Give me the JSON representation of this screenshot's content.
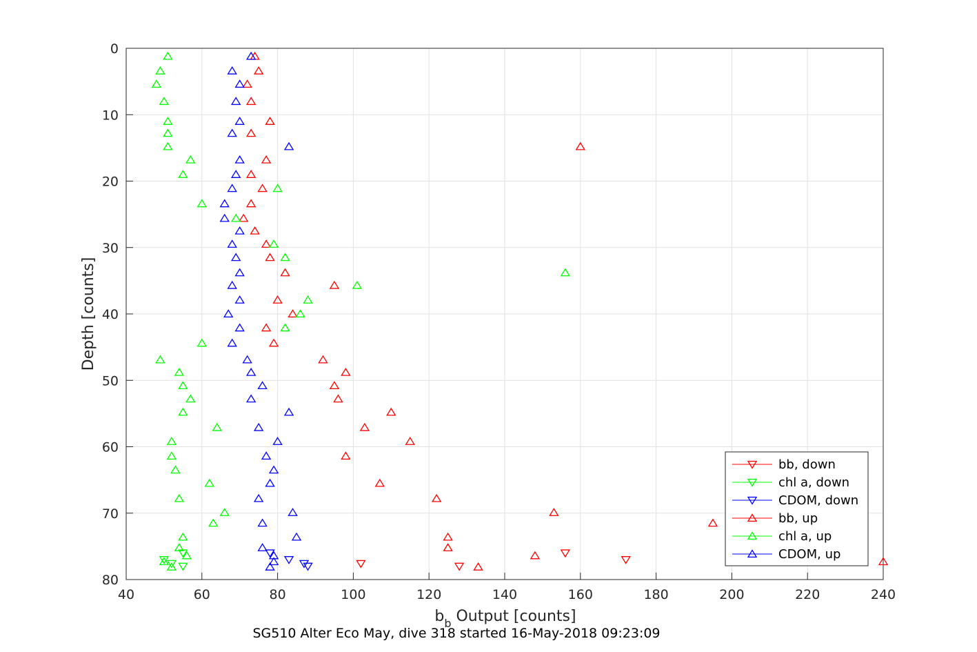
{
  "chart_data": {
    "type": "scatter",
    "title": "",
    "caption": "SG510 Alter Eco May, dive 318 started 16-May-2018 09:23:09",
    "xlabel_main": "b",
    "xlabel_sub": "b",
    "xlabel_rest": " Output [counts]",
    "ylabel": "Depth [counts]",
    "xlim": [
      40,
      240
    ],
    "ylim": [
      0,
      80
    ],
    "y_reversed": true,
    "grid": true,
    "legend_position": "bottom-right",
    "xticks": [
      "40",
      "60",
      "80",
      "100",
      "120",
      "140",
      "160",
      "180",
      "200",
      "220",
      "240"
    ],
    "yticks": [
      "0",
      "10",
      "20",
      "30",
      "40",
      "50",
      "60",
      "70",
      "80"
    ],
    "series": [
      {
        "name": "bb, down",
        "color": "#ff0000",
        "marker": "triangle-down",
        "points": [
          [
            156,
            76
          ],
          [
            172,
            77
          ],
          [
            128,
            78
          ],
          [
            102,
            77.6
          ]
        ]
      },
      {
        "name": "chl a, down",
        "color": "#00ff00",
        "marker": "triangle-down",
        "points": [
          [
            55,
            76
          ],
          [
            50,
            77
          ],
          [
            52,
            77.6
          ],
          [
            55,
            78
          ]
        ]
      },
      {
        "name": "CDOM, down",
        "color": "#0000ff",
        "marker": "triangle-down",
        "points": [
          [
            78,
            76
          ],
          [
            83,
            77
          ],
          [
            87,
            77.6
          ],
          [
            88,
            78
          ]
        ]
      },
      {
        "name": "bb, up",
        "color": "#ff0000",
        "marker": "triangle-up",
        "points": [
          [
            74,
            1.2
          ],
          [
            75,
            3.4
          ],
          [
            72,
            5.4
          ],
          [
            73,
            8
          ],
          [
            78,
            11
          ],
          [
            73,
            12.8
          ],
          [
            160,
            14.8
          ],
          [
            77,
            16.8
          ],
          [
            73,
            19
          ],
          [
            76,
            21.1
          ],
          [
            73,
            23.4
          ],
          [
            71,
            25.6
          ],
          [
            74,
            27.5
          ],
          [
            77,
            29.5
          ],
          [
            78,
            31.5
          ],
          [
            82,
            33.8
          ],
          [
            95,
            35.7
          ],
          [
            80,
            37.9
          ],
          [
            84,
            40
          ],
          [
            77,
            42.1
          ],
          [
            79,
            44.4
          ],
          [
            92,
            46.9
          ],
          [
            98,
            48.8
          ],
          [
            95,
            50.8
          ],
          [
            96,
            52.8
          ],
          [
            110,
            54.8
          ],
          [
            103,
            57.1
          ],
          [
            115,
            59.2
          ],
          [
            98,
            61.4
          ],
          [
            107,
            65.5
          ],
          [
            122,
            67.8
          ],
          [
            153,
            69.9
          ],
          [
            195,
            71.5
          ],
          [
            125,
            73.6
          ],
          [
            125,
            75.2
          ],
          [
            148,
            76.4
          ],
          [
            133,
            78.1
          ],
          [
            240,
            77.3
          ]
        ]
      },
      {
        "name": "chl a, up",
        "color": "#00ff00",
        "marker": "triangle-up",
        "points": [
          [
            51,
            1.2
          ],
          [
            49,
            3.4
          ],
          [
            48,
            5.4
          ],
          [
            50,
            8
          ],
          [
            51,
            11
          ],
          [
            51,
            12.8
          ],
          [
            51,
            14.8
          ],
          [
            57,
            16.8
          ],
          [
            55,
            19
          ],
          [
            80,
            21.1
          ],
          [
            60,
            23.4
          ],
          [
            69,
            25.6
          ],
          [
            79,
            29.5
          ],
          [
            82,
            31.5
          ],
          [
            156,
            33.8
          ],
          [
            101,
            35.7
          ],
          [
            88,
            37.9
          ],
          [
            86,
            40
          ],
          [
            82,
            42.1
          ],
          [
            60,
            44.4
          ],
          [
            49,
            46.9
          ],
          [
            54,
            48.8
          ],
          [
            55,
            50.8
          ],
          [
            57,
            52.8
          ],
          [
            55,
            54.8
          ],
          [
            64,
            57.1
          ],
          [
            52,
            59.2
          ],
          [
            52,
            61.4
          ],
          [
            53,
            63.5
          ],
          [
            62,
            65.5
          ],
          [
            54,
            67.8
          ],
          [
            66,
            69.9
          ],
          [
            63,
            71.5
          ],
          [
            55,
            73.6
          ],
          [
            54,
            75.2
          ],
          [
            56,
            76.4
          ],
          [
            50,
            77.3
          ],
          [
            52,
            78.1
          ]
        ]
      },
      {
        "name": "CDOM, up",
        "color": "#0000ff",
        "marker": "triangle-up",
        "points": [
          [
            73,
            1.2
          ],
          [
            68,
            3.4
          ],
          [
            70,
            5.4
          ],
          [
            69,
            8
          ],
          [
            70,
            11
          ],
          [
            68,
            12.8
          ],
          [
            83,
            14.8
          ],
          [
            70,
            16.8
          ],
          [
            69,
            19
          ],
          [
            68,
            21.1
          ],
          [
            66,
            23.4
          ],
          [
            66,
            25.6
          ],
          [
            70,
            27.5
          ],
          [
            68,
            29.5
          ],
          [
            69,
            31.5
          ],
          [
            70,
            33.8
          ],
          [
            68,
            35.7
          ],
          [
            70,
            37.9
          ],
          [
            67,
            40
          ],
          [
            70,
            42.1
          ],
          [
            68,
            44.4
          ],
          [
            72,
            46.9
          ],
          [
            73,
            48.8
          ],
          [
            76,
            50.8
          ],
          [
            73,
            52.8
          ],
          [
            83,
            54.8
          ],
          [
            75,
            57.1
          ],
          [
            80,
            59.2
          ],
          [
            77,
            61.4
          ],
          [
            79,
            63.5
          ],
          [
            78,
            65.5
          ],
          [
            75,
            67.8
          ],
          [
            84,
            69.9
          ],
          [
            76,
            71.5
          ],
          [
            85,
            73.6
          ],
          [
            76,
            75.2
          ],
          [
            79,
            76.4
          ],
          [
            79,
            77.3
          ],
          [
            78,
            78.1
          ]
        ]
      }
    ]
  }
}
